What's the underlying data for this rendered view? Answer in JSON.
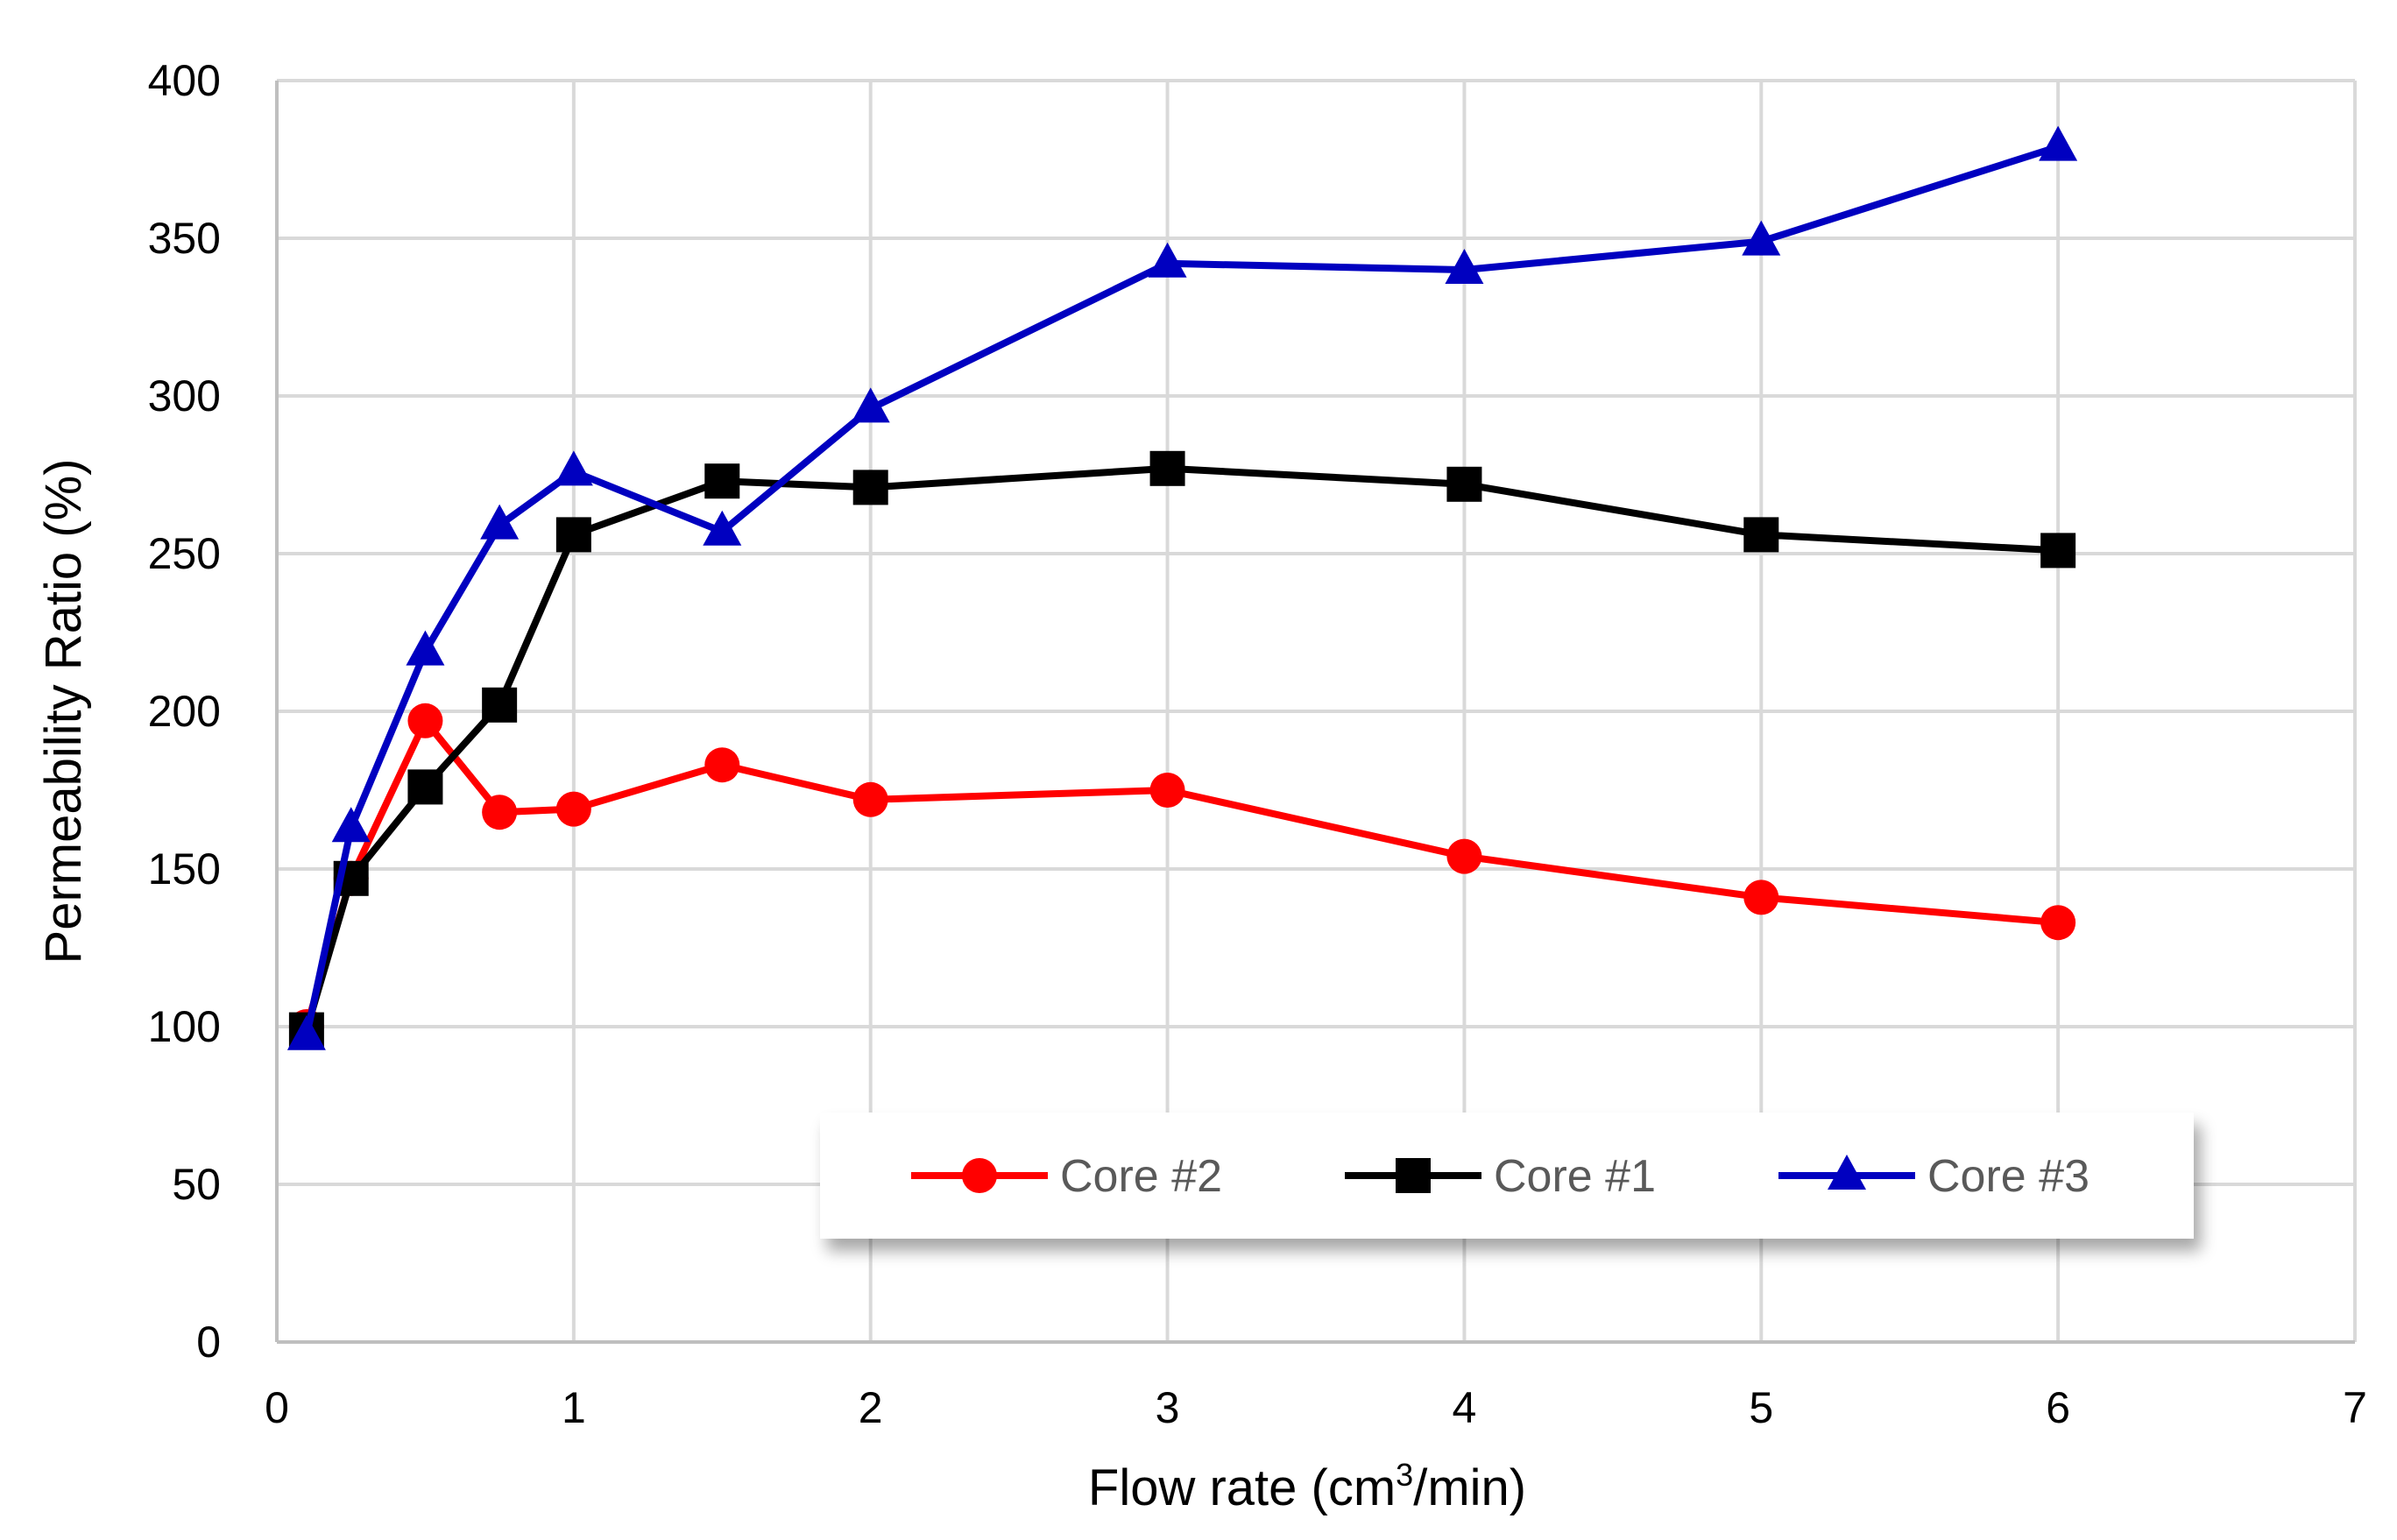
{
  "chart_data": {
    "type": "line",
    "title": "",
    "xlabel": "Flow rate (cm³/min)",
    "xlabel_parts": {
      "before": "Flow rate (cm",
      "sup": "3",
      "after": "/min)"
    },
    "ylabel": "Permeability Ratio (%)",
    "xlim": [
      0,
      7
    ],
    "ylim": [
      0,
      400
    ],
    "xticks": [
      0,
      1,
      2,
      3,
      4,
      5,
      6,
      7
    ],
    "yticks": [
      0,
      50,
      100,
      150,
      200,
      250,
      300,
      350,
      400
    ],
    "grid": true,
    "legend_position": "bottom-center",
    "series": [
      {
        "name": "Core #2",
        "color": "#ff0000",
        "marker": "circle",
        "x": [
          0.1,
          0.25,
          0.5,
          0.75,
          1.0,
          1.5,
          2.0,
          3.0,
          4.0,
          5.0,
          6.0
        ],
        "values": [
          100,
          147,
          197,
          168,
          169,
          183,
          172,
          175,
          154,
          141,
          133
        ]
      },
      {
        "name": "Core #1",
        "color": "#000000",
        "marker": "square",
        "x": [
          0.1,
          0.25,
          0.5,
          0.75,
          1.0,
          1.5,
          2.0,
          3.0,
          4.0,
          5.0,
          6.0
        ],
        "values": [
          99,
          147,
          176,
          202,
          256,
          273,
          271,
          277,
          272,
          256,
          251
        ]
      },
      {
        "name": "Core #3",
        "color": "#0000c0",
        "marker": "triangle",
        "x": [
          0.1,
          0.25,
          0.5,
          0.75,
          1.0,
          1.5,
          2.0,
          3.0,
          4.0,
          5.0,
          6.0
        ],
        "values": [
          97,
          163,
          219,
          259,
          276,
          257,
          296,
          342,
          340,
          349,
          379
        ]
      }
    ]
  }
}
